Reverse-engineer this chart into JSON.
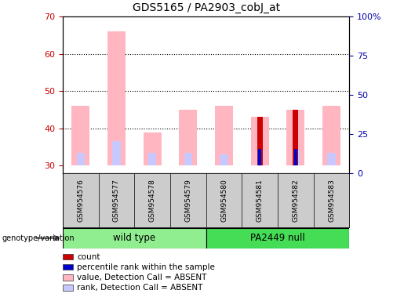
{
  "title": "GDS5165 / PA2903_cobJ_at",
  "samples": [
    "GSM954576",
    "GSM954577",
    "GSM954578",
    "GSM954579",
    "GSM954580",
    "GSM954581",
    "GSM954582",
    "GSM954583"
  ],
  "groups": [
    {
      "name": "wild type",
      "samples": [
        0,
        1,
        2,
        3
      ],
      "color": "#90EE90"
    },
    {
      "name": "PA2449 null",
      "samples": [
        4,
        5,
        6,
        7
      ],
      "color": "#44DD55"
    }
  ],
  "ylim_left": [
    28,
    70
  ],
  "ylim_right": [
    0,
    100
  ],
  "yticks_left": [
    30,
    40,
    50,
    60,
    70
  ],
  "yticks_right": [
    0,
    25,
    50,
    75,
    100
  ],
  "ytick_labels_right": [
    "0",
    "25",
    "50",
    "75",
    "100%"
  ],
  "value_absent": [
    46,
    66,
    39,
    45,
    46,
    43,
    45,
    46
  ],
  "rank_absent": [
    33.5,
    36.5,
    33.5,
    33.5,
    33,
    34,
    34,
    33.5
  ],
  "count": [
    0,
    0,
    0,
    0,
    0,
    43,
    45,
    0
  ],
  "percentile_rank": [
    0,
    0,
    0,
    0,
    0,
    34.5,
    34.5,
    0
  ],
  "bar_bottom": 30,
  "color_value_absent": "#FFB6C1",
  "color_rank_absent": "#C8C8FF",
  "color_count": "#CC0000",
  "color_percentile": "#0000CC",
  "legend_items": [
    {
      "color": "#CC0000",
      "label": "count"
    },
    {
      "color": "#0000CC",
      "label": "percentile rank within the sample"
    },
    {
      "color": "#FFB6C1",
      "label": "value, Detection Call = ABSENT"
    },
    {
      "color": "#C8C8FF",
      "label": "rank, Detection Call = ABSENT"
    }
  ],
  "ylabel_left_color": "#CC0000",
  "ylabel_right_color": "#0000AA",
  "group_arrow_label": "genotype/variation",
  "sample_box_color": "#CCCCCC",
  "bar_width": 0.5
}
